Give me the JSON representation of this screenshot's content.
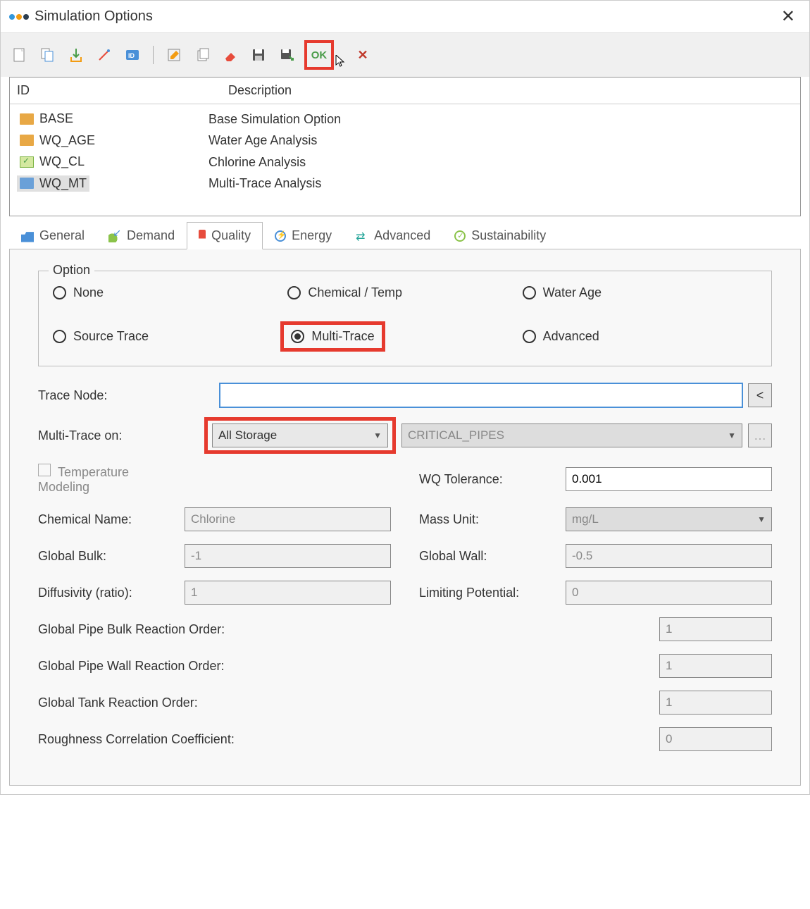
{
  "window": {
    "title": "Simulation Options"
  },
  "toolbar": {
    "ok_label": "OK"
  },
  "list": {
    "header_id": "ID",
    "header_desc": "Description",
    "rows": [
      {
        "id": "BASE",
        "desc": "Base Simulation Option",
        "icon": "folder-orange"
      },
      {
        "id": "WQ_AGE",
        "desc": "Water Age Analysis",
        "icon": "folder-orange"
      },
      {
        "id": "WQ_CL",
        "desc": "Chlorine Analysis",
        "icon": "folder-check"
      },
      {
        "id": "WQ_MT",
        "desc": "Multi-Trace Analysis",
        "icon": "folder-blue",
        "selected": true
      }
    ]
  },
  "tabs": {
    "general": "General",
    "demand": "Demand",
    "quality": "Quality",
    "energy": "Energy",
    "advanced": "Advanced",
    "sustainability": "Sustainability"
  },
  "quality": {
    "option_legend": "Option",
    "radios": {
      "none": "None",
      "chemical": "Chemical / Temp",
      "waterage": "Water Age",
      "source": "Source Trace",
      "multi": "Multi-Trace",
      "advanced": "Advanced"
    },
    "trace_node_label": "Trace Node:",
    "trace_node_value": "",
    "multitrace_label": "Multi-Trace on:",
    "multitrace_value": "All Storage",
    "critical_value": "CRITICAL_PIPES",
    "temp_modeling": "Temperature Modeling",
    "fields": {
      "chem_name_label": "Chemical Name:",
      "chem_name_value": "Chlorine",
      "global_bulk_label": "Global Bulk:",
      "global_bulk_value": "-1",
      "diffusivity_label": "Diffusivity (ratio):",
      "diffusivity_value": "1",
      "wq_tol_label": "WQ Tolerance:",
      "wq_tol_value": "0.001",
      "mass_unit_label": "Mass Unit:",
      "mass_unit_value": "mg/L",
      "global_wall_label": "Global Wall:",
      "global_wall_value": "-0.5",
      "limiting_label": "Limiting Potential:",
      "limiting_value": "0",
      "pipe_bulk_label": "Global Pipe Bulk Reaction Order:",
      "pipe_bulk_value": "1",
      "pipe_wall_label": "Global Pipe Wall Reaction Order:",
      "pipe_wall_value": "1",
      "tank_label": "Global Tank Reaction Order:",
      "tank_value": "1",
      "roughness_label": "Roughness Correlation Coefficient:",
      "roughness_value": "0"
    }
  },
  "highlights": {
    "color": "#e63a2e"
  }
}
